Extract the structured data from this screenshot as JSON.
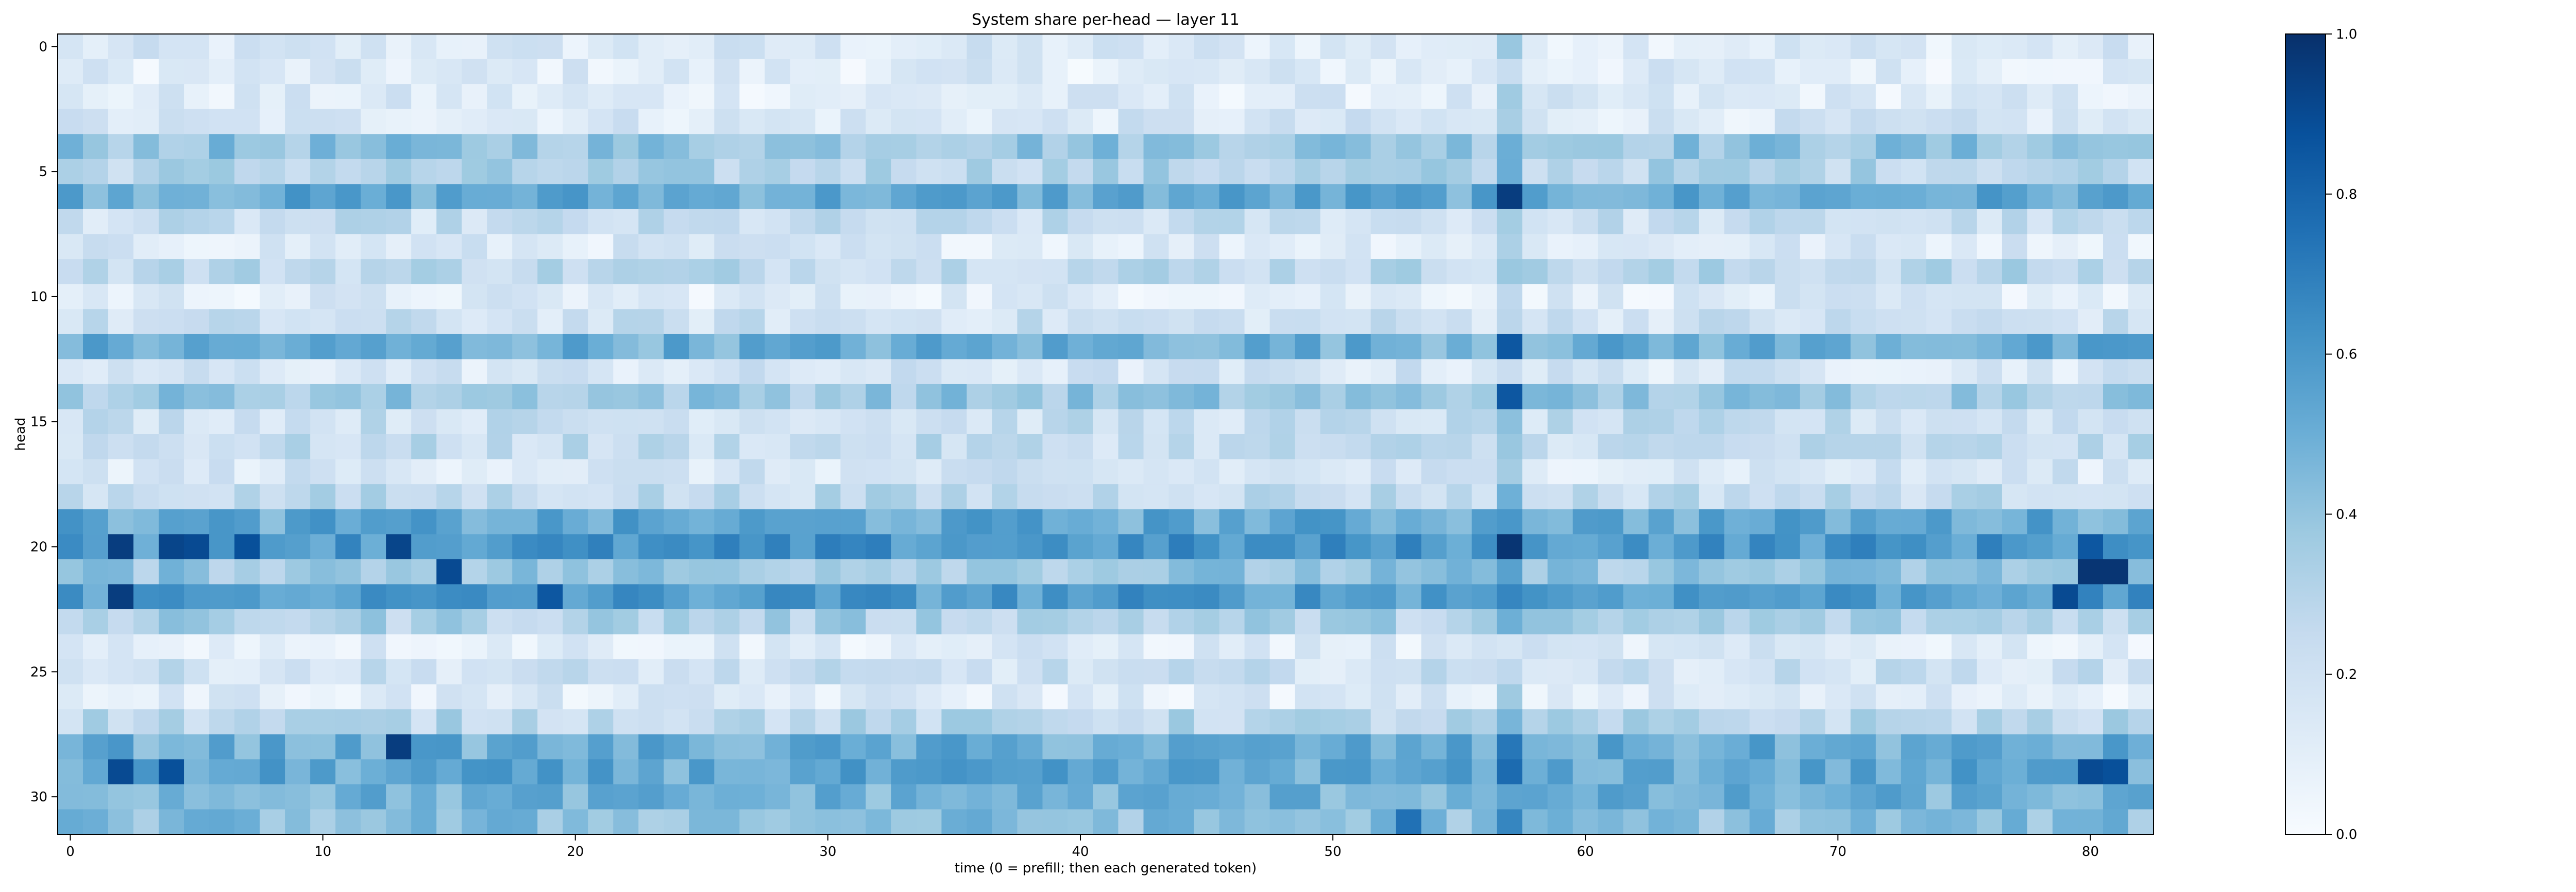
{
  "chart_data": {
    "type": "heatmap",
    "title": "System share per-head — layer 11",
    "xlabel": "time (0 = prefill; then each generated token)",
    "ylabel": "head",
    "n_rows": 32,
    "n_cols": 83,
    "x_ticks": [
      0,
      10,
      20,
      30,
      40,
      50,
      60,
      70,
      80
    ],
    "y_ticks": [
      0,
      5,
      10,
      15,
      20,
      25,
      30
    ],
    "colorbar": {
      "min": 0.0,
      "max": 1.0,
      "ticks": [
        "0.0",
        "0.2",
        "0.4",
        "0.6",
        "0.8",
        "1.0"
      ]
    },
    "colormap": [
      "#f7fbff",
      "#deebf7",
      "#c6dbef",
      "#9ecae1",
      "#6baed6",
      "#4292c6",
      "#2171b5",
      "#08519c",
      "#08306b"
    ],
    "row_profile": [
      0.14,
      0.12,
      0.12,
      0.15,
      0.4,
      0.3,
      0.52,
      0.22,
      0.14,
      0.28,
      0.12,
      0.2,
      0.5,
      0.16,
      0.38,
      0.22,
      0.24,
      0.16,
      0.26,
      0.52,
      0.6,
      0.38,
      0.58,
      0.32,
      0.12,
      0.2,
      0.12,
      0.28,
      0.5,
      0.52,
      0.48,
      0.42
    ],
    "hot_cells": [
      {
        "row": 6,
        "col": 57,
        "value": 0.95
      },
      {
        "row": 12,
        "col": 57,
        "value": 0.85
      },
      {
        "row": 14,
        "col": 57,
        "value": 0.85
      },
      {
        "row": 20,
        "col": 57,
        "value": 0.98
      },
      {
        "row": 20,
        "col": 2,
        "value": 0.95
      },
      {
        "row": 20,
        "col": 4,
        "value": 0.92
      },
      {
        "row": 20,
        "col": 5,
        "value": 0.9
      },
      {
        "row": 20,
        "col": 7,
        "value": 0.88
      },
      {
        "row": 20,
        "col": 13,
        "value": 0.92
      },
      {
        "row": 21,
        "col": 15,
        "value": 0.9
      },
      {
        "row": 22,
        "col": 2,
        "value": 0.95
      },
      {
        "row": 22,
        "col": 19,
        "value": 0.85
      },
      {
        "row": 21,
        "col": 80,
        "value": 0.98
      },
      {
        "row": 21,
        "col": 81,
        "value": 0.98
      },
      {
        "row": 22,
        "col": 79,
        "value": 0.9
      },
      {
        "row": 20,
        "col": 80,
        "value": 0.85
      },
      {
        "row": 28,
        "col": 13,
        "value": 0.95
      },
      {
        "row": 29,
        "col": 2,
        "value": 0.9
      },
      {
        "row": 29,
        "col": 4,
        "value": 0.88
      },
      {
        "row": 29,
        "col": 80,
        "value": 0.9
      },
      {
        "row": 29,
        "col": 81,
        "value": 0.88
      },
      {
        "row": 31,
        "col": 53,
        "value": 0.75
      }
    ]
  }
}
